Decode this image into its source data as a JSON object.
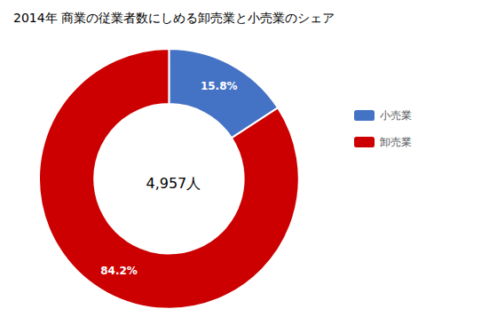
{
  "chart_data": {
    "type": "pie",
    "title": "2014年 商業の従業者数にしめる卸売業と小売業のシェア",
    "categories": [
      "小売業",
      "卸売業"
    ],
    "values": [
      15.8,
      84.2
    ],
    "value_labels": [
      "15.8%",
      "84.2%"
    ],
    "colors": [
      "#4472C4",
      "#CC0000"
    ],
    "annotations": [
      "4,957人"
    ],
    "data_labels": true,
    "legend": "right"
  }
}
